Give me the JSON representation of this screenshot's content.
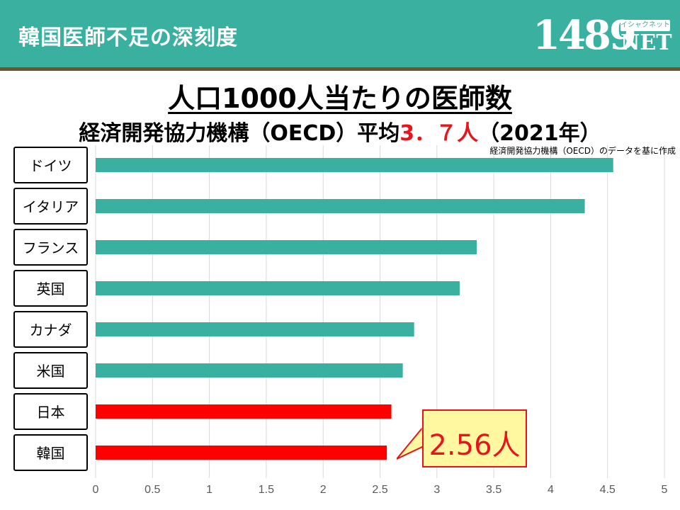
{
  "header": {
    "title": "韓国医師不足の深刻度"
  },
  "logo": {
    "number": "1489",
    "net": "NET",
    "kana": "イシャクネット"
  },
  "title": "人口1000人当たりの医師数",
  "subtitle": {
    "prefix": "経済開発協力機構（OECD）平均",
    "average": "3．７人",
    "suffix": "（2021年）"
  },
  "source": "経済開発協力機構（OECD）のデータを基に作成",
  "callout": {
    "text": "2.56人"
  },
  "colors": {
    "header": "#3ab1a0",
    "rule": "#6e5428",
    "bar_default": "#3ab1a0",
    "bar_highlight": "#ff0000",
    "accent_red": "#e8141c",
    "callout_bg": "#fff8a0"
  },
  "chart_data": {
    "type": "bar",
    "orientation": "horizontal",
    "categories": [
      "ドイツ",
      "イタリア",
      "フランス",
      "英国",
      "カナダ",
      "米国",
      "日本",
      "韓国"
    ],
    "values": [
      4.55,
      4.3,
      3.35,
      3.2,
      2.8,
      2.7,
      2.6,
      2.56
    ],
    "highlight": [
      "日本",
      "韓国"
    ],
    "xlim": [
      0,
      5
    ],
    "xticks": [
      "0",
      "0.5",
      "1",
      "1.5",
      "2",
      "2.5",
      "3",
      "3.5",
      "4",
      "4.5",
      "5"
    ],
    "grid": true
  }
}
